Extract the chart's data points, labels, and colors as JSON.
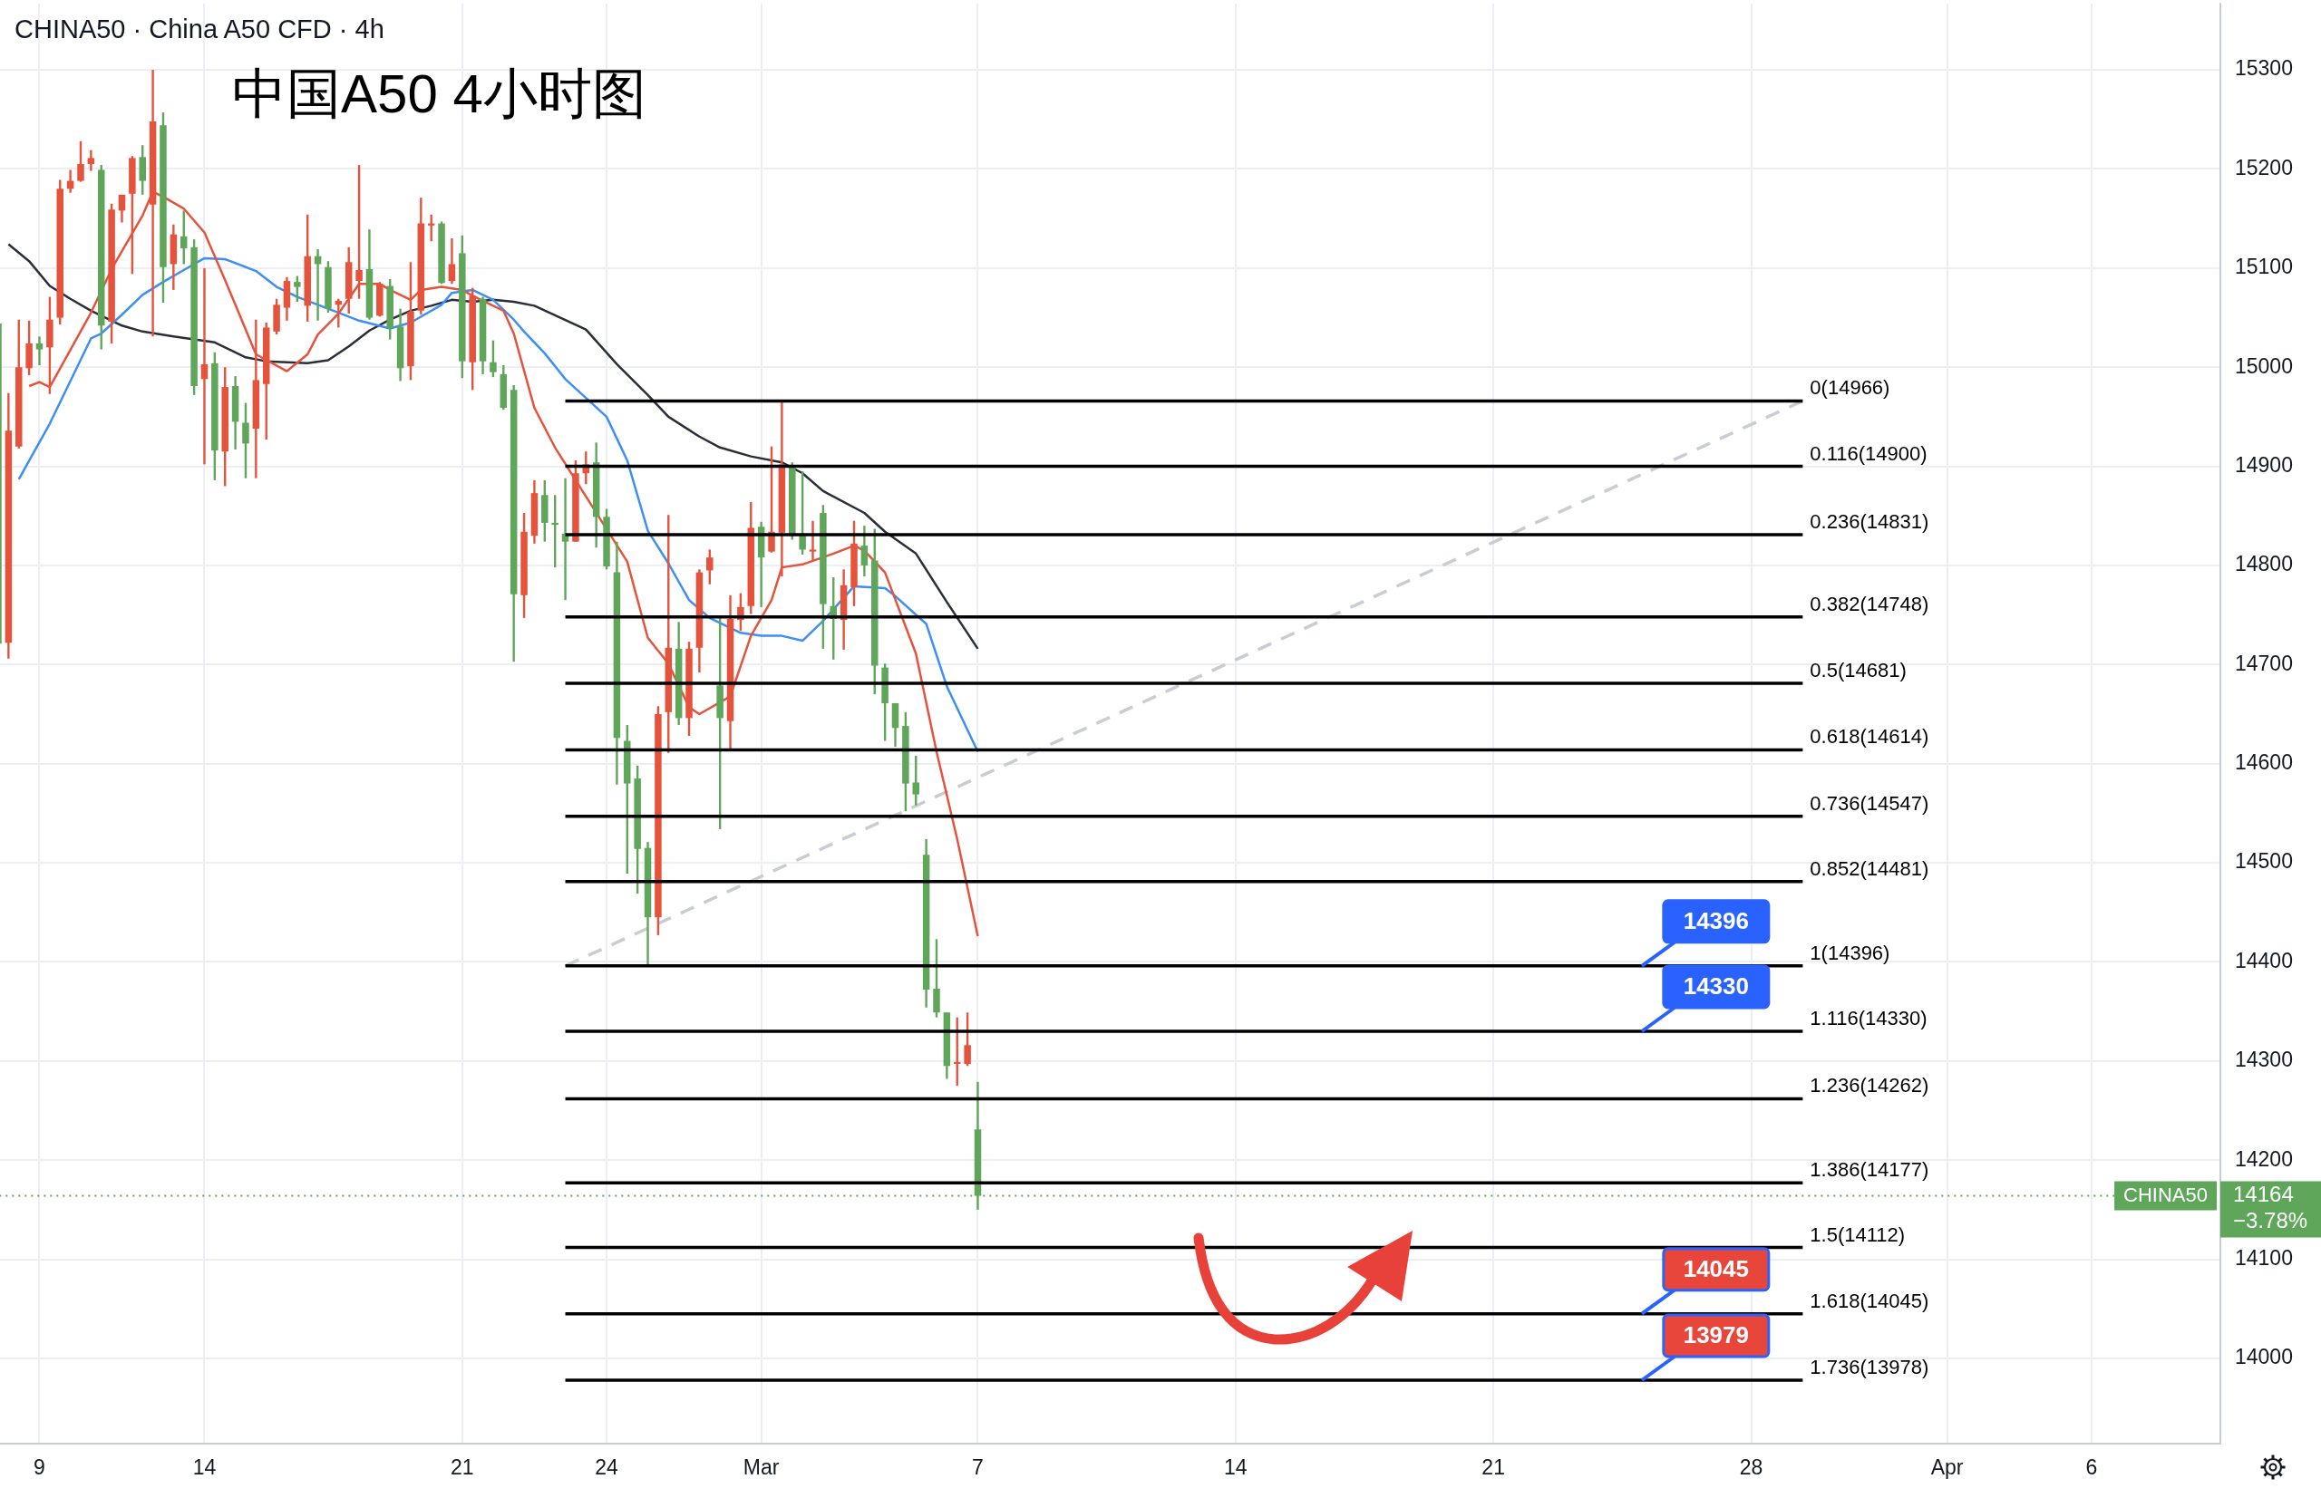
{
  "chart_data": {
    "type": "candlestick",
    "title": "中国A50 4小时图",
    "subtitle": "CHINA50 · China A50 CFD · 4h",
    "categories": [
      null,
      null,
      null,
      null,
      "9",
      null,
      null,
      null,
      null,
      null,
      null,
      null,
      null,
      null,
      null,
      null,
      null,
      null,
      null,
      null,
      "14",
      null,
      null,
      null,
      null,
      null,
      null,
      null,
      null,
      null,
      null,
      null,
      null,
      null,
      null,
      null,
      null,
      null,
      null,
      null,
      null,
      null,
      null,
      null,
      null,
      "21",
      null,
      null,
      null,
      null,
      null,
      null,
      null,
      null,
      null,
      null,
      null,
      null,
      null,
      "24",
      null,
      null,
      null,
      null,
      null,
      null,
      null,
      null,
      null,
      null,
      null,
      null,
      null,
      null,
      "Mar",
      null,
      null,
      null,
      null,
      null,
      null,
      null,
      null,
      null,
      null,
      null,
      null,
      null,
      null,
      null,
      null,
      null,
      null,
      null,
      null,
      "7",
      null,
      null,
      null,
      null,
      null,
      null,
      null,
      null,
      null,
      null,
      null,
      null,
      null,
      null,
      null,
      null,
      null,
      null,
      null,
      null,
      null,
      null,
      null,
      null,
      "14",
      null,
      null,
      null,
      null,
      null,
      null,
      null,
      null,
      null,
      null,
      null,
      null,
      null,
      null,
      null,
      null,
      null,
      null,
      null,
      null,
      null,
      null,
      null,
      null,
      "21",
      null,
      null,
      null,
      null,
      null,
      null,
      null,
      null,
      null,
      null,
      null,
      null,
      null,
      null,
      null,
      null,
      null,
      null,
      null,
      null,
      null,
      null,
      null,
      null,
      "28",
      null,
      null,
      null,
      null,
      null,
      null,
      null,
      null,
      null,
      null,
      null,
      null,
      null,
      null,
      null,
      null,
      null,
      null,
      "Apr",
      null,
      null,
      null,
      null,
      null,
      null,
      null,
      null,
      null,
      null,
      null,
      null,
      null,
      "6",
      null,
      null,
      null,
      null,
      null,
      null,
      null,
      null,
      null,
      null,
      null,
      null
    ],
    "ohlc": [
      [
        15044,
        15046,
        14720,
        14721
      ],
      [
        14722,
        14974,
        14706,
        14936
      ],
      [
        14920,
        15048,
        14918,
        15000
      ],
      [
        14999,
        15047,
        14992,
        15024
      ],
      [
        15024,
        15031,
        15002,
        15018
      ],
      [
        15020,
        15071,
        14973,
        15048
      ],
      [
        15050,
        15189,
        15043,
        15180
      ],
      [
        15180,
        15199,
        15176,
        15188
      ],
      [
        15188,
        15228,
        15187,
        15205
      ],
      [
        15205,
        15219,
        15198,
        15211
      ],
      [
        15199,
        15204,
        15018,
        15042
      ],
      [
        15046,
        15165,
        15024,
        15159
      ],
      [
        15158,
        15174,
        15146,
        15174
      ],
      [
        15175,
        15213,
        15094,
        15211
      ],
      [
        15212,
        15224,
        15174,
        15188
      ],
      [
        15164,
        15300,
        15031,
        15248
      ],
      [
        15244,
        15257,
        15065,
        15101
      ],
      [
        15104,
        15144,
        15078,
        15134
      ],
      [
        15132,
        15158,
        15104,
        15120
      ],
      [
        15121,
        15129,
        14972,
        14981
      ],
      [
        14988,
        15100,
        14902,
        15003
      ],
      [
        15004,
        15015,
        14886,
        14916
      ],
      [
        14915,
        15000,
        14880,
        14980
      ],
      [
        14981,
        14991,
        14917,
        14945
      ],
      [
        14944,
        14964,
        14888,
        14923
      ],
      [
        14938,
        15048,
        14888,
        14987
      ],
      [
        14983,
        15045,
        14927,
        15040
      ],
      [
        15036,
        15069,
        15033,
        15063
      ],
      [
        15060,
        15091,
        15047,
        15087
      ],
      [
        15086,
        15092,
        15066,
        15081
      ],
      [
        15062,
        15154,
        15046,
        15112
      ],
      [
        15112,
        15119,
        15047,
        15104
      ],
      [
        15101,
        15107,
        15055,
        15059
      ],
      [
        15063,
        15069,
        15040,
        15067
      ],
      [
        15069,
        15121,
        15054,
        15106
      ],
      [
        15087,
        15204,
        15069,
        15098
      ],
      [
        15099,
        15139,
        15048,
        15050
      ],
      [
        15052,
        15086,
        15051,
        15084
      ],
      [
        15082,
        15089,
        15028,
        15040
      ],
      [
        15041,
        15059,
        14986,
        14999
      ],
      [
        15001,
        15106,
        14987,
        15056
      ],
      [
        15057,
        15171,
        15053,
        15145
      ],
      [
        15143,
        15154,
        15127,
        15145
      ],
      [
        15145,
        15147,
        15084,
        15085
      ],
      [
        15087,
        15130,
        15084,
        15104
      ],
      [
        15115,
        15133,
        14989,
        15006
      ],
      [
        15005,
        15080,
        14977,
        15072
      ],
      [
        15069,
        15071,
        14993,
        15006
      ],
      [
        15005,
        15027,
        14990,
        14995
      ],
      [
        14993,
        15002,
        14957,
        14959
      ],
      [
        14977,
        14982,
        14703,
        14771
      ],
      [
        14770,
        14853,
        14747,
        14834
      ],
      [
        14830,
        14886,
        14822,
        14873
      ],
      [
        14871,
        14886,
        14824,
        14843
      ],
      [
        14843,
        14871,
        14798,
        14841
      ],
      [
        14832,
        14888,
        14765,
        14824
      ],
      [
        14824,
        14906,
        14824,
        14893
      ],
      [
        14893,
        14915,
        14882,
        14902
      ],
      [
        14904,
        14924,
        14818,
        14849
      ],
      [
        14849,
        14857,
        14796,
        14799
      ],
      [
        14793,
        14824,
        14579,
        14626
      ],
      [
        14623,
        14639,
        14489,
        14580
      ],
      [
        14585,
        14598,
        14469,
        14514
      ],
      [
        14515,
        14521,
        14396,
        14445
      ],
      [
        14445,
        14658,
        14427,
        14650
      ],
      [
        14652,
        14851,
        14611,
        14717
      ],
      [
        14716,
        14743,
        14639,
        14646
      ],
      [
        14646,
        14723,
        14628,
        14716
      ],
      [
        14717,
        14796,
        14692,
        14793
      ],
      [
        14795,
        14816,
        14781,
        14808
      ],
      [
        14679,
        14749,
        14534,
        14646
      ],
      [
        14643,
        14770,
        14614,
        14746
      ],
      [
        14745,
        14772,
        14734,
        14758
      ],
      [
        14759,
        14864,
        14751,
        14838
      ],
      [
        14839,
        14844,
        14758,
        14808
      ],
      [
        14814,
        14920,
        14813,
        14834
      ],
      [
        14833,
        14966,
        14789,
        14902
      ],
      [
        14901,
        14904,
        14826,
        14830
      ],
      [
        14830,
        14895,
        14811,
        14816
      ],
      [
        14814,
        14845,
        14804,
        14816
      ],
      [
        14853,
        14861,
        14716,
        14761
      ],
      [
        14759,
        14788,
        14705,
        14746
      ],
      [
        14745,
        14796,
        14715,
        14780
      ],
      [
        14778,
        14845,
        14759,
        14822
      ],
      [
        14820,
        14840,
        14789,
        14800
      ],
      [
        14805,
        14837,
        14670,
        14699
      ],
      [
        14697,
        14701,
        14623,
        14661
      ],
      [
        14661,
        14661,
        14617,
        14636
      ],
      [
        14638,
        14652,
        14552,
        14580
      ],
      [
        14581,
        14608,
        14558,
        14569
      ],
      [
        14508,
        14524,
        14354,
        14372
      ],
      [
        14373,
        14423,
        14344,
        14349
      ],
      [
        14349,
        14349,
        14282,
        14295
      ],
      [
        14298,
        14344,
        14275,
        14299
      ],
      [
        14297,
        14349,
        14295,
        14316
      ],
      [
        14231,
        14279,
        14150,
        14164
      ],
      null,
      null,
      null,
      null,
      null,
      null,
      null,
      null,
      null,
      null,
      null,
      null,
      null,
      null,
      null,
      null,
      null,
      null,
      null,
      null,
      null,
      null,
      null,
      null,
      null,
      null,
      null,
      null,
      null,
      null,
      null,
      null,
      null,
      null,
      null,
      null,
      null,
      null,
      null,
      null,
      null,
      null,
      null,
      null,
      null,
      null,
      null,
      null,
      null,
      null,
      null,
      null,
      null,
      null,
      null,
      null,
      null,
      null,
      null,
      null,
      null,
      null,
      null,
      null,
      null,
      null,
      null,
      null,
      null,
      null,
      null,
      null,
      null,
      null,
      null,
      null,
      null,
      null,
      null,
      null,
      null,
      null,
      null,
      null,
      null,
      null,
      null,
      null,
      null,
      null,
      null,
      null,
      null,
      null,
      null,
      null,
      null,
      null,
      null,
      null,
      null,
      null,
      null,
      null,
      null,
      null,
      null,
      null,
      null,
      null,
      null,
      null,
      null,
      null,
      null,
      null,
      null,
      null,
      null,
      null
    ],
    "series": [
      {
        "type": "line",
        "color": "#e5533d",
        "values": [
          null,
          null,
          null,
          14981,
          14985,
          14980,
          null,
          null,
          null,
          15055,
          null,
          15099,
          null,
          null,
          15153,
          15177,
          15172,
          null,
          15160,
          null,
          15136,
          null,
          15088,
          null,
          null,
          15013,
          null,
          null,
          14996,
          null,
          15013,
          15033,
          null,
          15054,
          null,
          15084,
          null,
          15084,
          15078,
          null,
          15068,
          15078,
          null,
          15081,
          null,
          15078,
          15072,
          null,
          null,
          15057,
          15034,
          null,
          14959,
          null,
          14919,
          null,
          14886,
          null,
          null,
          null,
          null,
          14804,
          null,
          14727,
          null,
          14701,
          null,
          14657,
          14650,
          null,
          null,
          14668,
          null,
          14729,
          null,
          14765,
          14798,
          null,
          14801,
          null,
          null,
          14812,
          null,
          14820,
          14815,
          null,
          14793,
          null,
          null,
          14711,
          null,
          14612,
          null,
          14524,
          null,
          14426,
          null,
          null,
          null,
          null,
          null,
          null,
          null,
          null,
          null,
          null,
          null,
          null,
          null,
          null,
          null,
          null,
          null,
          null,
          null,
          null,
          null,
          null,
          null,
          null,
          null,
          null,
          null,
          null,
          null,
          null,
          null,
          null,
          null,
          null,
          null,
          null,
          null,
          null,
          null,
          null,
          null,
          null,
          null,
          null,
          null,
          null,
          null,
          null,
          null,
          null,
          null,
          null,
          null,
          null,
          null,
          null,
          null,
          null,
          null,
          null,
          null,
          null,
          null,
          null,
          null,
          null,
          null,
          null,
          null,
          null,
          null,
          null,
          null,
          null,
          null,
          null,
          null,
          null,
          null,
          null,
          null,
          null,
          null,
          null,
          null,
          null,
          null,
          null,
          null,
          null,
          null,
          null,
          null,
          null,
          null,
          null,
          null,
          null,
          null,
          null,
          null,
          null,
          null,
          null,
          null,
          null,
          null,
          null,
          null,
          null,
          null,
          null,
          null,
          null,
          null,
          null,
          null,
          null,
          null,
          null
        ]
      },
      {
        "type": "line",
        "color": "#3d8ef5",
        "values": [
          null,
          null,
          14887,
          null,
          null,
          14943,
          null,
          null,
          null,
          15029,
          15034,
          null,
          15053,
          null,
          15073,
          null,
          15086,
          null,
          15098,
          null,
          15110,
          null,
          15109,
          null,
          null,
          15097,
          null,
          15081,
          null,
          15071,
          null,
          null,
          15059,
          null,
          null,
          15047,
          null,
          null,
          15039,
          null,
          15045,
          null,
          null,
          15063,
          15075,
          null,
          15078,
          null,
          15068,
          null,
          15048,
          15036,
          null,
          15014,
          null,
          14988,
          null,
          null,
          null,
          14950,
          null,
          14906,
          null,
          14835,
          null,
          14802,
          null,
          14765,
          null,
          14747,
          null,
          null,
          14732,
          null,
          14729,
          null,
          14729,
          null,
          14724,
          null,
          14744,
          null,
          null,
          14779,
          null,
          null,
          14777,
          14769,
          null,
          null,
          14741,
          null,
          14678,
          null,
          null,
          14612,
          null,
          null,
          null,
          null,
          null,
          null,
          null,
          null,
          null,
          null,
          null,
          null,
          null,
          null,
          null,
          null,
          null,
          null,
          null,
          null,
          null,
          null,
          null,
          null,
          null,
          null,
          null,
          null,
          null,
          null,
          null,
          null,
          null,
          null,
          null,
          null,
          null,
          null,
          null,
          null,
          null,
          null,
          null,
          null,
          null,
          null,
          null,
          null,
          null,
          null,
          null,
          null,
          null,
          null,
          null,
          null,
          null,
          null,
          null,
          null,
          null,
          null,
          null,
          null,
          null,
          null,
          null,
          null,
          null,
          null,
          null,
          null,
          null,
          null,
          null,
          null,
          null,
          null,
          null,
          null,
          null,
          null,
          null,
          null,
          null,
          null,
          null,
          null,
          null,
          null,
          null,
          null,
          null,
          null,
          null,
          null,
          null,
          null,
          null,
          null,
          null,
          null,
          null,
          null,
          null,
          null,
          null,
          null,
          null,
          null,
          null,
          null,
          null,
          null,
          null,
          null,
          null,
          null,
          null,
          null
        ]
      },
      {
        "type": "line",
        "color": "#2a2e39",
        "values": [
          null,
          15124,
          null,
          15107,
          null,
          15082,
          null,
          15069,
          null,
          15057,
          null,
          null,
          15042,
          null,
          15036,
          null,
          null,
          15031,
          null,
          null,
          null,
          15025,
          null,
          null,
          15010,
          null,
          15006,
          null,
          15005,
          null,
          15004,
          null,
          15007,
          null,
          15021,
          null,
          15037,
          null,
          15048,
          null,
          15057,
          null,
          15062,
          null,
          15068,
          null,
          15066,
          null,
          15068,
          null,
          15066,
          null,
          15062,
          null,
          null,
          null,
          null,
          15038,
          null,
          null,
          15003,
          null,
          null,
          14972,
          null,
          14950,
          null,
          null,
          14930,
          null,
          14919,
          null,
          null,
          14910,
          null,
          null,
          14904,
          null,
          14893,
          null,
          14875,
          null,
          null,
          null,
          14853,
          null,
          14834,
          null,
          null,
          14812,
          null,
          null,
          14763,
          null,
          null,
          14716,
          null,
          null,
          null,
          null,
          null,
          null,
          null,
          null,
          null,
          null,
          null,
          null,
          null,
          null,
          null,
          null,
          null,
          null,
          null,
          null,
          null,
          null,
          null,
          null,
          null,
          null,
          null,
          null,
          null,
          null,
          null,
          null,
          null,
          null,
          null,
          null,
          null,
          null,
          null,
          null,
          null,
          null,
          null,
          null,
          null,
          null,
          null,
          null,
          null,
          null,
          null,
          null,
          null,
          null,
          null,
          null,
          null,
          null,
          null,
          null,
          null,
          null,
          null,
          null,
          null,
          null,
          null,
          null,
          null,
          null,
          null,
          null,
          null,
          null,
          null,
          null,
          null,
          null,
          null,
          null,
          null,
          null,
          null,
          null,
          null,
          null,
          null,
          null,
          null,
          null,
          null,
          null,
          null,
          null,
          null,
          null,
          null,
          null,
          null,
          null,
          null,
          null,
          null,
          null,
          null,
          null,
          null,
          null,
          null,
          null,
          null,
          null,
          null,
          null,
          null,
          null,
          null,
          null,
          null,
          null
        ]
      },
      {
        "type": "line",
        "color": "#c9ccd3",
        "line_style": "dashed",
        "values": [
          null,
          null,
          null,
          null,
          null,
          null,
          null,
          null,
          null,
          null,
          null,
          null,
          null,
          null,
          null,
          null,
          null,
          null,
          null,
          null,
          null,
          null,
          null,
          null,
          null,
          null,
          null,
          null,
          null,
          null,
          null,
          null,
          null,
          null,
          null,
          null,
          null,
          null,
          null,
          null,
          null,
          null,
          null,
          null,
          null,
          null,
          null,
          null,
          null,
          null,
          null,
          null,
          null,
          null,
          null,
          14396,
          null,
          null,
          null,
          null,
          null,
          null,
          null,
          null,
          null,
          null,
          null,
          null,
          null,
          null,
          null,
          null,
          null,
          null,
          null,
          null,
          null,
          null,
          null,
          null,
          null,
          null,
          null,
          null,
          null,
          null,
          null,
          null,
          null,
          null,
          null,
          null,
          null,
          null,
          null,
          null,
          null,
          null,
          null,
          null,
          null,
          null,
          null,
          null,
          null,
          null,
          null,
          null,
          null,
          null,
          null,
          null,
          null,
          null,
          null,
          null,
          null,
          null,
          null,
          null,
          null,
          null,
          null,
          null,
          null,
          null,
          null,
          null,
          null,
          null,
          null,
          null,
          null,
          null,
          null,
          null,
          null,
          null,
          null,
          null,
          null,
          null,
          null,
          null,
          null,
          null,
          null,
          null,
          null,
          null,
          null,
          null,
          null,
          null,
          null,
          null,
          null,
          null,
          null,
          null,
          null,
          null,
          null,
          null,
          null,
          null,
          null,
          null,
          null,
          null,
          null,
          null,
          null,
          null,
          null,
          14966,
          null,
          null,
          null,
          null,
          null,
          null,
          null,
          null,
          null,
          null,
          null,
          null,
          null,
          null,
          null,
          null,
          null,
          null,
          null,
          null,
          null,
          null,
          null,
          null,
          null,
          null,
          null,
          null,
          null,
          null,
          null,
          null,
          null,
          null,
          null,
          null,
          null,
          null,
          null,
          null
        ]
      }
    ],
    "ylim": [
      13914,
      15367
    ],
    "yticks": [
      14000,
      14100,
      14200,
      14300,
      14400,
      14500,
      14600,
      14700,
      14800,
      14900,
      15000,
      15100,
      15200,
      15300
    ],
    "grid": true,
    "ref_lines": [
      {
        "axis": "y",
        "value": 14966,
        "label": "0(14966)",
        "color": "#000000",
        "line_style": "solid"
      },
      {
        "axis": "y",
        "value": 14900,
        "label": "0.116(14900)",
        "color": "#000000",
        "line_style": "solid"
      },
      {
        "axis": "y",
        "value": 14831,
        "label": "0.236(14831)",
        "color": "#000000",
        "line_style": "solid"
      },
      {
        "axis": "y",
        "value": 14748,
        "label": "0.382(14748)",
        "color": "#000000",
        "line_style": "solid"
      },
      {
        "axis": "y",
        "value": 14681,
        "label": "0.5(14681)",
        "color": "#000000",
        "line_style": "solid"
      },
      {
        "axis": "y",
        "value": 14614,
        "label": "0.618(14614)",
        "color": "#000000",
        "line_style": "solid"
      },
      {
        "axis": "y",
        "value": 14547,
        "label": "0.736(14547)",
        "color": "#000000",
        "line_style": "solid"
      },
      {
        "axis": "y",
        "value": 14481,
        "label": "0.852(14481)",
        "color": "#000000",
        "line_style": "solid"
      },
      {
        "axis": "y",
        "value": 14396,
        "label": "1(14396)",
        "color": "#000000",
        "line_style": "solid"
      },
      {
        "axis": "y",
        "value": 14330,
        "label": "1.116(14330)",
        "color": "#000000",
        "line_style": "solid"
      },
      {
        "axis": "y",
        "value": 14262,
        "label": "1.236(14262)",
        "color": "#000000",
        "line_style": "solid"
      },
      {
        "axis": "y",
        "value": 14177,
        "label": "1.386(14177)",
        "color": "#000000",
        "line_style": "solid"
      },
      {
        "axis": "y",
        "value": 14112,
        "label": "1.5(14112)",
        "color": "#000000",
        "line_style": "solid"
      },
      {
        "axis": "y",
        "value": 14045,
        "label": "1.618(14045)",
        "color": "#000000",
        "line_style": "solid"
      },
      {
        "axis": "y",
        "value": 13978,
        "label": "1.736(13978)",
        "color": "#000000",
        "line_style": "solid"
      },
      {
        "axis": "y",
        "value": 14164,
        "label": "CHINA50",
        "color": "#5fa65a",
        "line_style": "dotted"
      }
    ],
    "annotations": [
      {
        "text": "14396",
        "y": 14396
      },
      {
        "text": "14330",
        "y": 14330
      },
      {
        "text": "14045",
        "y": 14045
      },
      {
        "text": "13979",
        "y": 13978
      },
      "14164",
      "−3.78%"
    ]
  }
}
